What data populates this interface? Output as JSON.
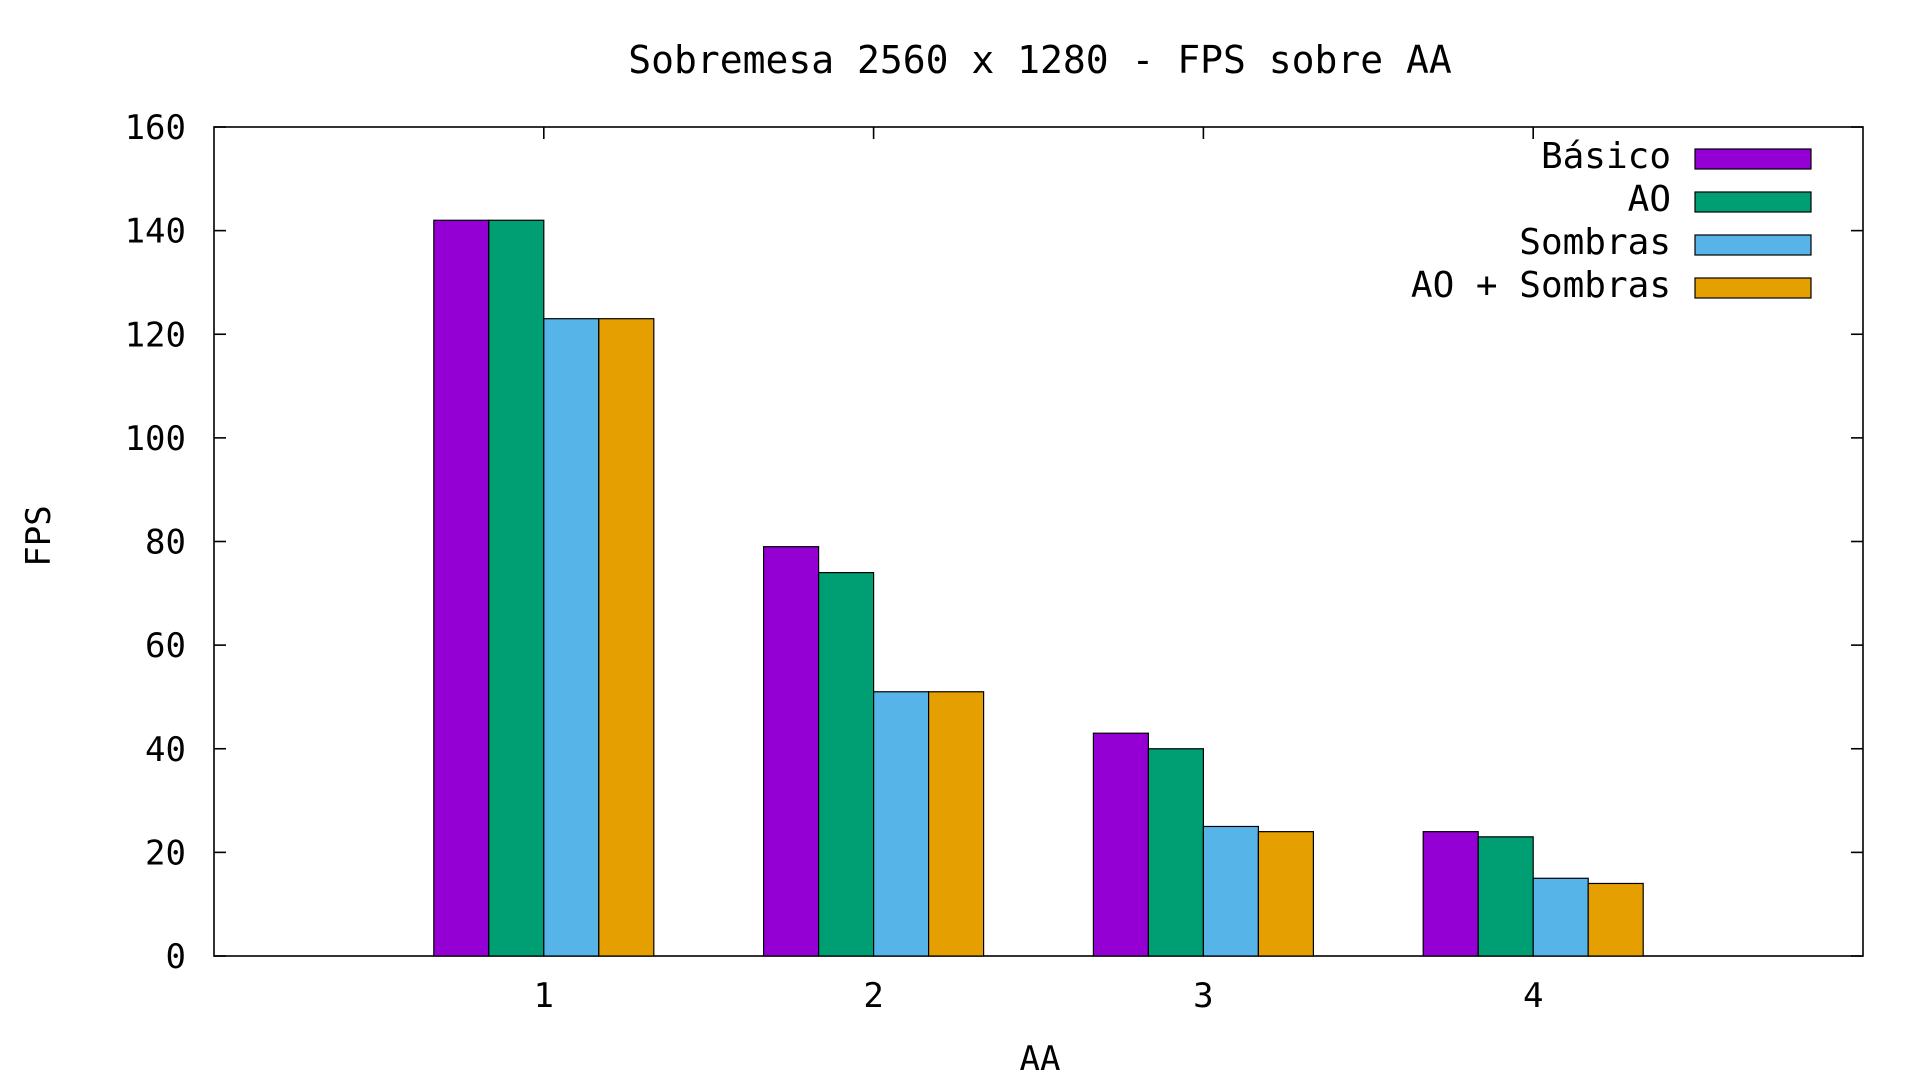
{
  "chart_data": {
    "type": "bar",
    "title": "Sobremesa 2560 x 1280 - FPS sobre AA",
    "xlabel": "AA",
    "ylabel": "FPS",
    "categories": [
      "1",
      "2",
      "3",
      "4"
    ],
    "ylim": [
      0,
      160
    ],
    "yticks": [
      0,
      20,
      40,
      60,
      80,
      100,
      120,
      140,
      160
    ],
    "grid": false,
    "legend_position": "top-right",
    "series": [
      {
        "name": "Básico",
        "color": "#9400d3",
        "values": [
          142,
          79,
          43,
          24
        ]
      },
      {
        "name": "AO",
        "color": "#009e73",
        "values": [
          142,
          74,
          40,
          23
        ]
      },
      {
        "name": "Sombras",
        "color": "#56b4e9",
        "values": [
          123,
          51,
          25,
          15
        ]
      },
      {
        "name": "AO + Sombras",
        "color": "#e69f00",
        "values": [
          123,
          51,
          24,
          14
        ]
      }
    ]
  }
}
